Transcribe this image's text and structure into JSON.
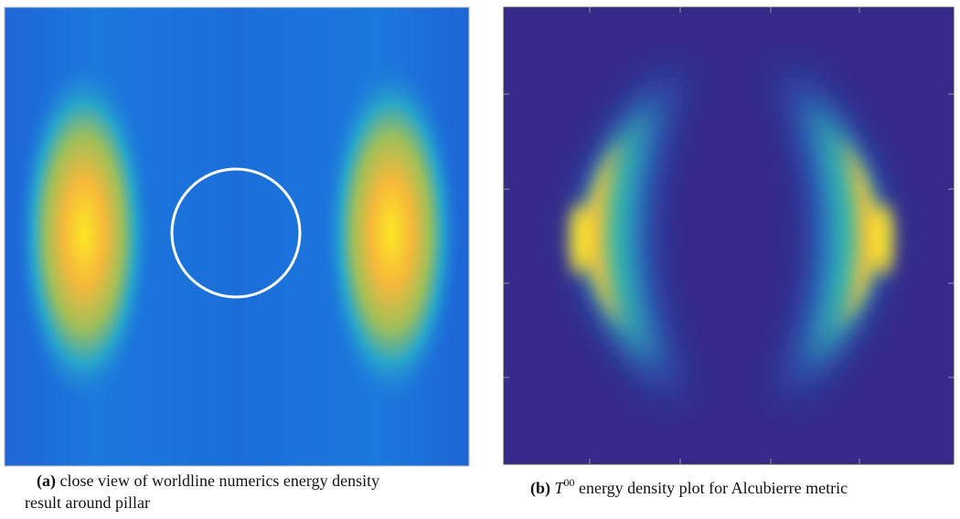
{
  "figures": [
    {
      "label": "(a)",
      "caption_line1": "close view of worldline numerics energy density",
      "caption_line2": "result around  pillar"
    },
    {
      "label": "(b)",
      "symbol": "T",
      "superscript": "00",
      "caption": "energy density plot for Alcubierre metric"
    }
  ]
}
